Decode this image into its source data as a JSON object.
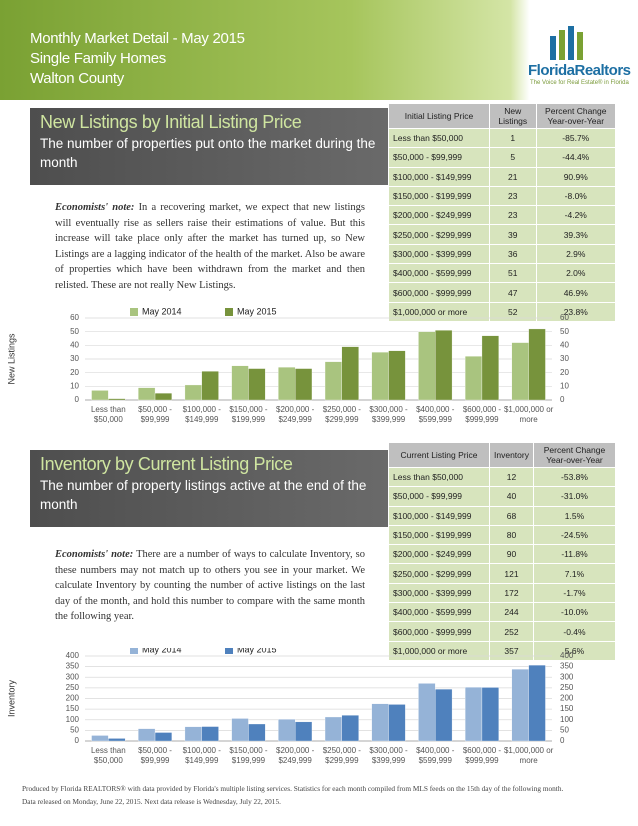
{
  "header": {
    "title": "Monthly Market Detail - May 2015",
    "subtitle": "Single Family Homes",
    "area": "Walton County",
    "logo": "FloridaRealtors",
    "tagline": "The Voice for Real Estate® in Florida"
  },
  "sections": [
    {
      "title": "New Listings by Initial Listing Price",
      "subtitle": "The number of properties put onto the market during the month",
      "note_label": "Economists' note:",
      "note": "In a recovering market, we expect that new listings will eventually rise as sellers raise their estimations of value. But this increase will take place only after the market has turned up, so New Listings are a lagging indicator of the health of the market. Also be aware of properties which have been withdrawn from the market and then relisted. These are not really New Listings.",
      "table": {
        "columns": [
          "Initial Listing Price",
          "New Listings",
          "Percent Change Year-over-Year"
        ],
        "rows": [
          [
            "Less than $50,000",
            1,
            "-85.7%"
          ],
          [
            "$50,000 - $99,999",
            5,
            "-44.4%"
          ],
          [
            "$100,000 - $149,999",
            21,
            "90.9%"
          ],
          [
            "$150,000 - $199,999",
            23,
            "-8.0%"
          ],
          [
            "$200,000 - $249,999",
            23,
            "-4.2%"
          ],
          [
            "$250,000 - $299,999",
            39,
            "39.3%"
          ],
          [
            "$300,000 - $399,999",
            36,
            "2.9%"
          ],
          [
            "$400,000 - $599,999",
            51,
            "2.0%"
          ],
          [
            "$600,000 - $999,999",
            47,
            "46.9%"
          ],
          [
            "$1,000,000 or more",
            52,
            "23.8%"
          ]
        ]
      }
    },
    {
      "title": "Inventory by Current Listing Price",
      "subtitle": "The number of property listings active at the end of the month",
      "note_label": "Economists' note:",
      "note": "There are a number of ways to calculate Inventory, so these numbers may not match up to others you see in your market. We calculate Inventory by counting the number of active listings on the last day of the month, and hold this number to compare with the same month the following year.",
      "table": {
        "columns": [
          "Current Listing Price",
          "Inventory",
          "Percent Change Year-over-Year"
        ],
        "rows": [
          [
            "Less than $50,000",
            12,
            "-53.8%"
          ],
          [
            "$50,000 - $99,999",
            40,
            "-31.0%"
          ],
          [
            "$100,000 - $149,999",
            68,
            "1.5%"
          ],
          [
            "$150,000 - $199,999",
            80,
            "-24.5%"
          ],
          [
            "$200,000 - $249,999",
            90,
            "-11.8%"
          ],
          [
            "$250,000 - $299,999",
            121,
            "7.1%"
          ],
          [
            "$300,000 - $399,999",
            172,
            "-1.7%"
          ],
          [
            "$400,000 - $599,999",
            244,
            "-10.0%"
          ],
          [
            "$600,000 - $999,999",
            252,
            "-0.4%"
          ],
          [
            "$1,000,000 or more",
            357,
            "5.6%"
          ]
        ]
      }
    }
  ],
  "chart_data": [
    {
      "type": "bar",
      "y_label": "New Listings",
      "categories": [
        "Less than\n$50,000",
        "$50,000 -\n$99,999",
        "$100,000 -\n$149,999",
        "$150,000 -\n$199,999",
        "$200,000 -\n$249,999",
        "$250,000 -\n$299,999",
        "$300,000 -\n$399,999",
        "$400,000 -\n$599,999",
        "$600,000 -\n$999,999",
        "$1,000,000 or\nmore"
      ],
      "series": [
        {
          "name": "May 2014",
          "color": "#a9c47f",
          "values": [
            7,
            9,
            11,
            25,
            24,
            28,
            35,
            50,
            32,
            42
          ]
        },
        {
          "name": "May 2015",
          "color": "#77933c",
          "values": [
            1,
            5,
            21,
            23,
            23,
            39,
            36,
            51,
            47,
            52
          ]
        }
      ],
      "ylim": [
        0,
        60
      ],
      "yticks": [
        0,
        10,
        20,
        30,
        40,
        50,
        60
      ],
      "y2lim": [
        0,
        60
      ],
      "y2ticks": [
        0,
        10,
        20,
        30,
        40,
        50,
        60
      ],
      "grid": true,
      "legend": "top"
    },
    {
      "type": "bar",
      "y_label": "Inventory",
      "categories": [
        "Less than\n$50,000",
        "$50,000 -\n$99,999",
        "$100,000 -\n$149,999",
        "$150,000 -\n$199,999",
        "$200,000 -\n$249,999",
        "$250,000 -\n$299,999",
        "$300,000 -\n$399,999",
        "$400,000 -\n$599,999",
        "$600,000 -\n$999,999",
        "$1,000,000 or\nmore"
      ],
      "series": [
        {
          "name": "May 2014",
          "color": "#95b3d7",
          "values": [
            26,
            58,
            67,
            106,
            102,
            113,
            175,
            271,
            253,
            338
          ]
        },
        {
          "name": "May 2015",
          "color": "#4f81bd",
          "values": [
            12,
            40,
            68,
            80,
            90,
            121,
            172,
            244,
            252,
            357
          ]
        }
      ],
      "ylim": [
        0,
        400
      ],
      "yticks": [
        0,
        50,
        100,
        150,
        200,
        250,
        300,
        350,
        400
      ],
      "y2lim": [
        0,
        400
      ],
      "y2ticks": [
        0,
        50,
        100,
        150,
        200,
        250,
        300,
        350,
        400
      ],
      "grid": true,
      "legend": "top"
    }
  ],
  "footer": {
    "line1": "Produced by Florida REALTORS® with data provided by Florida's multiple listing services. Statistics for each month compiled from MLS feeds on the 15th day of the following month.",
    "line2": "Data released on Monday, June 22, 2015. Next data release is Wednesday, July 22, 2015."
  }
}
